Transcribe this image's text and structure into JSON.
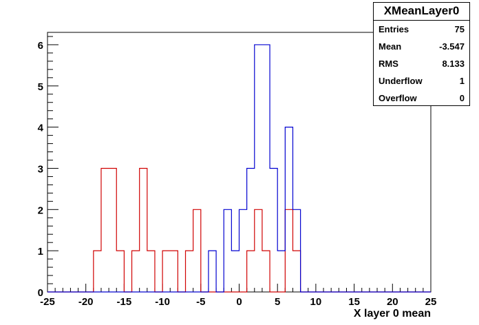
{
  "chart_data": {
    "type": "histogram",
    "title": "XMeanLayer0",
    "xlabel": "X layer 0 mean",
    "ylabel": "",
    "xlim": [
      -25,
      25
    ],
    "ylim": [
      0,
      6.3
    ],
    "bin_width": 1,
    "x_ticks": [
      -25,
      -20,
      -15,
      -10,
      -5,
      0,
      5,
      10,
      15,
      20,
      25
    ],
    "y_ticks": [
      0,
      1,
      2,
      3,
      4,
      5,
      6
    ],
    "stats": {
      "title": "XMeanLayer0",
      "rows": [
        {
          "label": "Entries",
          "value": "75"
        },
        {
          "label": "Mean",
          "value": "-3.547"
        },
        {
          "label": "RMS",
          "value": "8.133"
        },
        {
          "label": "Underflow",
          "value": "1"
        },
        {
          "label": "Overflow",
          "value": "0"
        }
      ]
    },
    "series": [
      {
        "color": "#d00000",
        "bins_low_edge": [
          -19,
          -18,
          -17,
          -16,
          -15,
          -14,
          -13,
          -12,
          -11,
          -10,
          -9,
          -8,
          -7,
          -6,
          -5,
          -4,
          -3,
          -2,
          -1,
          0,
          1,
          2,
          3,
          4,
          5,
          6,
          7
        ],
        "counts": [
          1,
          3,
          3,
          1,
          0,
          1,
          3,
          1,
          0,
          1,
          1,
          0,
          1,
          2,
          0,
          0,
          0,
          0,
          0,
          0,
          1,
          2,
          1,
          0,
          0,
          2,
          1
        ]
      },
      {
        "color": "#0000d0",
        "bins_low_edge": [
          -4,
          -3,
          -2,
          -1,
          0,
          1,
          2,
          3,
          4,
          5,
          6,
          7
        ],
        "counts": [
          1,
          0,
          2,
          1,
          2,
          3,
          6,
          6,
          3,
          1,
          4,
          2
        ]
      }
    ]
  }
}
